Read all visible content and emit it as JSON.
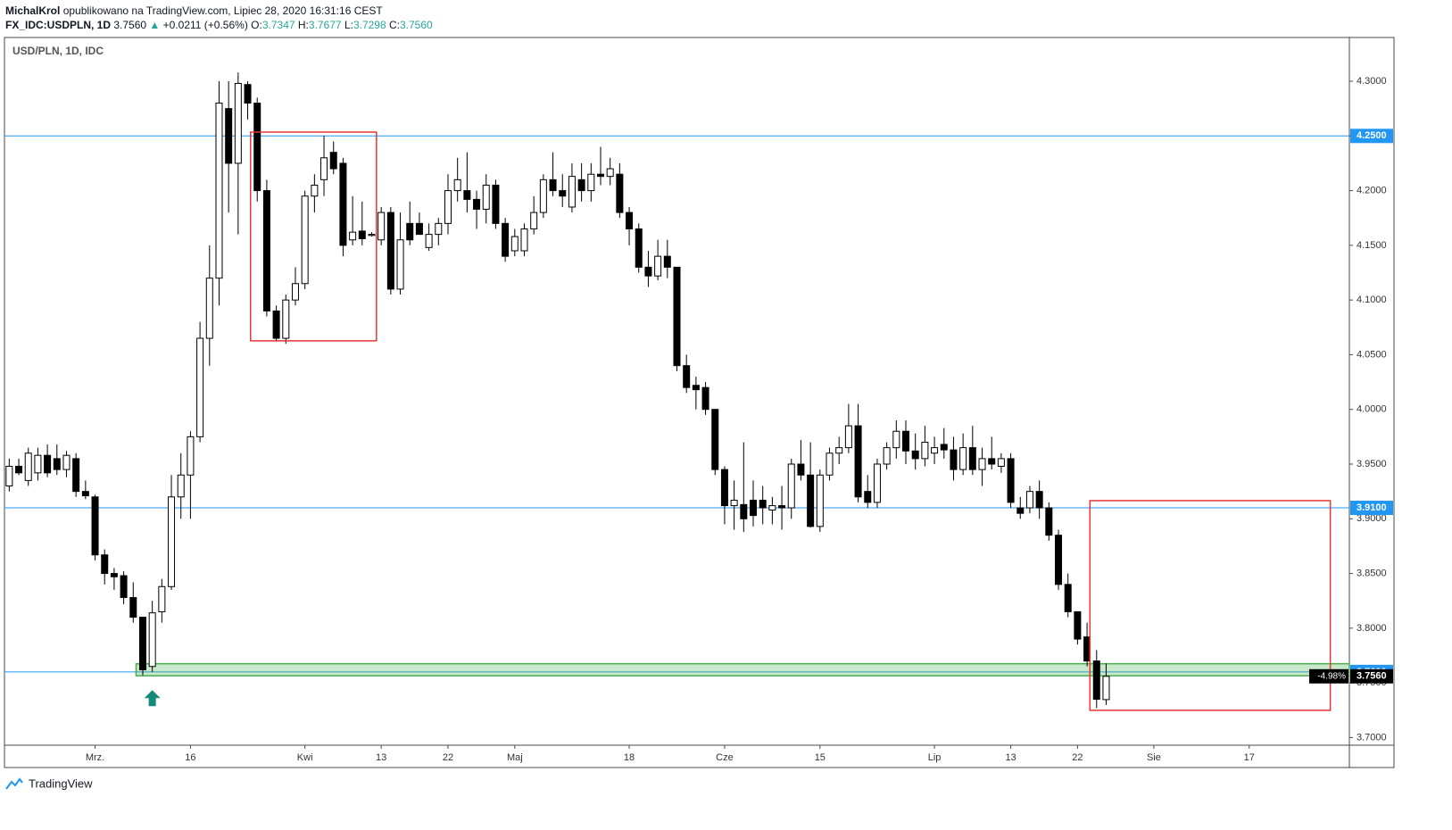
{
  "header": {
    "author": "MichalKrol",
    "published": "opublikowano na TradingView.com, Lipiec 28, 2020 16:31:16 CEST",
    "symbol": "FX_IDC:USDPLN, 1D",
    "last": "3.7560",
    "arrow": "▲",
    "change": "+0.0211 (+0.56%)",
    "o_label": "O:",
    "o": "3.7347",
    "h_label": "H:",
    "h": "3.7677",
    "l_label": "L:",
    "l": "3.7298",
    "c_label": "C:",
    "c": "3.7560"
  },
  "footer": {
    "brand": "TradingView"
  },
  "chart_data": {
    "type": "candlestick",
    "title": "USD/PLN, 1D, IDC",
    "categories": [
      null,
      null,
      null,
      null,
      null,
      null,
      null,
      null,
      null,
      "Mrz.",
      null,
      null,
      null,
      null,
      null,
      null,
      null,
      null,
      null,
      "16",
      null,
      null,
      null,
      null,
      null,
      null,
      null,
      null,
      null,
      null,
      null,
      "Kwi",
      null,
      null,
      null,
      null,
      null,
      null,
      null,
      "13",
      null,
      null,
      null,
      null,
      null,
      null,
      "22",
      null,
      null,
      null,
      null,
      null,
      null,
      "Maj",
      null,
      null,
      null,
      null,
      null,
      null,
      null,
      null,
      null,
      null,
      null,
      "18",
      null,
      null,
      null,
      null,
      null,
      null,
      null,
      null,
      null,
      "Cze",
      null,
      null,
      null,
      null,
      null,
      null,
      null,
      null,
      null,
      "15",
      null,
      null,
      null,
      null,
      null,
      null,
      null,
      null,
      null,
      null,
      null,
      "Lip",
      null,
      null,
      null,
      null,
      null,
      null,
      null,
      "13",
      null,
      null,
      null,
      null,
      null,
      null,
      "22",
      null,
      null,
      null,
      null,
      null,
      null,
      null,
      "Sie",
      null,
      null,
      null,
      null,
      null,
      null,
      null,
      null,
      null,
      "17",
      null,
      null,
      null,
      null,
      null,
      null,
      null,
      null,
      null,
      null
    ],
    "open": [
      3.93,
      3.948,
      3.935,
      3.942,
      3.958,
      3.955,
      3.945,
      3.955,
      3.925,
      3.92,
      3.867,
      3.85,
      3.848,
      3.828,
      3.81,
      3.765,
      3.815,
      3.838,
      3.92,
      3.94,
      3.975,
      4.065,
      4.12,
      4.275,
      4.225,
      4.297,
      4.28,
      4.2,
      4.09,
      4.065,
      4.1,
      4.115,
      4.195,
      4.21,
      4.235,
      4.225,
      4.155,
      4.163,
      4.159,
      4.155,
      4.18,
      4.11,
      4.17,
      4.17,
      4.148,
      4.16,
      4.17,
      4.2,
      4.2,
      4.192,
      4.183,
      4.205,
      4.17,
      4.145,
      4.145,
      4.165,
      4.18,
      4.21,
      4.2,
      4.185,
      4.21,
      4.2,
      4.215,
      4.213,
      4.215,
      4.18,
      4.165,
      4.13,
      4.122,
      4.14,
      4.13,
      4.04,
      4.022,
      4.02,
      4.0,
      3.945,
      3.912,
      3.913,
      3.917,
      3.917,
      3.908,
      3.912,
      3.91,
      3.95,
      3.94,
      3.893,
      3.94,
      3.96,
      3.965,
      3.985,
      3.925,
      3.915,
      3.95,
      3.965,
      3.98,
      3.962,
      3.955,
      3.96,
      3.968,
      3.963,
      3.945,
      3.965,
      3.945,
      3.955,
      3.948,
      3.955,
      3.91,
      3.91,
      3.925,
      3.91,
      3.885,
      3.84,
      3.815,
      3.792,
      3.77,
      3.7347,
      null,
      null,
      null,
      null,
      null,
      null,
      null,
      null,
      null,
      null,
      null,
      null,
      null,
      null,
      null,
      null,
      null,
      null,
      null,
      null,
      null,
      null,
      null,
      null,
      null
    ],
    "high": [
      3.955,
      3.955,
      3.965,
      3.965,
      3.968,
      3.968,
      3.962,
      3.96,
      3.935,
      3.922,
      3.872,
      3.855,
      3.852,
      3.842,
      3.81,
      3.825,
      3.845,
      3.94,
      3.96,
      3.98,
      4.08,
      4.15,
      4.3,
      4.3,
      4.308,
      4.3,
      4.285,
      4.21,
      4.095,
      4.105,
      4.13,
      4.2,
      4.215,
      4.25,
      4.245,
      4.23,
      4.195,
      4.19,
      4.162,
      4.185,
      4.185,
      4.18,
      4.19,
      4.18,
      4.17,
      4.175,
      4.215,
      4.23,
      4.235,
      4.2,
      4.215,
      4.21,
      4.175,
      4.165,
      4.17,
      4.195,
      4.215,
      4.235,
      4.215,
      4.225,
      4.225,
      4.225,
      4.24,
      4.23,
      4.225,
      4.185,
      4.17,
      4.145,
      4.155,
      4.155,
      4.13,
      4.05,
      4.03,
      4.025,
      4.0,
      3.948,
      3.935,
      3.97,
      3.935,
      3.93,
      3.92,
      3.93,
      3.955,
      3.972,
      3.97,
      3.945,
      3.965,
      3.975,
      4.005,
      4.005,
      3.94,
      3.955,
      3.97,
      3.99,
      3.99,
      3.978,
      3.985,
      3.975,
      3.983,
      3.975,
      3.978,
      3.985,
      3.965,
      3.975,
      3.96,
      3.96,
      3.92,
      3.93,
      3.935,
      3.915,
      3.89,
      3.85,
      3.815,
      3.805,
      3.78,
      3.7677,
      null,
      null,
      null,
      null,
      null,
      null,
      null,
      null,
      null,
      null,
      null,
      null,
      null,
      null,
      null,
      null,
      null,
      null,
      null,
      null,
      null,
      null,
      null,
      null,
      null
    ],
    "low": [
      3.925,
      3.94,
      3.93,
      3.935,
      3.938,
      3.94,
      3.938,
      3.92,
      3.918,
      3.862,
      3.84,
      3.835,
      3.822,
      3.805,
      3.757,
      3.76,
      3.805,
      3.835,
      3.9,
      3.9,
      3.97,
      4.04,
      4.095,
      4.18,
      4.16,
      4.265,
      4.19,
      4.085,
      4.062,
      4.06,
      4.095,
      4.11,
      4.18,
      4.195,
      4.215,
      4.14,
      4.15,
      4.15,
      4.158,
      4.15,
      4.105,
      4.105,
      4.15,
      4.16,
      4.145,
      4.15,
      4.16,
      4.19,
      4.18,
      4.165,
      4.17,
      4.165,
      4.135,
      4.14,
      4.14,
      4.16,
      4.175,
      4.195,
      4.185,
      4.18,
      4.19,
      4.19,
      4.205,
      4.205,
      4.175,
      4.15,
      4.125,
      4.112,
      4.118,
      4.12,
      4.035,
      4.015,
      4.0,
      3.995,
      3.94,
      3.895,
      3.89,
      3.888,
      3.893,
      3.895,
      3.895,
      3.89,
      3.9,
      3.935,
      3.892,
      3.888,
      3.935,
      3.95,
      3.96,
      3.915,
      3.91,
      3.91,
      3.945,
      3.955,
      3.95,
      3.945,
      3.948,
      3.95,
      3.955,
      3.935,
      3.94,
      3.94,
      3.93,
      3.945,
      3.942,
      3.91,
      3.9,
      3.905,
      3.9,
      3.88,
      3.835,
      3.81,
      3.785,
      3.765,
      3.727,
      3.7298,
      null,
      null,
      null,
      null,
      null,
      null,
      null,
      null,
      null,
      null,
      null,
      null,
      null,
      null,
      null,
      null,
      null,
      null,
      null,
      null,
      null,
      null,
      null,
      null,
      null
    ],
    "close": [
      3.948,
      3.942,
      3.96,
      3.958,
      3.942,
      3.945,
      3.958,
      3.925,
      3.921,
      3.867,
      3.85,
      3.847,
      3.828,
      3.81,
      3.762,
      3.814,
      3.838,
      3.92,
      3.94,
      3.975,
      4.065,
      4.12,
      4.28,
      4.225,
      4.298,
      4.28,
      4.2,
      4.09,
      4.065,
      4.1,
      4.115,
      4.195,
      4.205,
      4.23,
      4.22,
      4.15,
      4.162,
      4.156,
      4.16,
      4.18,
      4.11,
      4.155,
      4.155,
      4.16,
      4.16,
      4.17,
      4.2,
      4.21,
      4.192,
      4.183,
      4.205,
      4.17,
      4.14,
      4.158,
      4.165,
      4.18,
      4.21,
      4.2,
      4.195,
      4.213,
      4.2,
      4.215,
      4.213,
      4.22,
      4.18,
      4.165,
      4.13,
      4.122,
      4.14,
      4.13,
      4.04,
      4.02,
      4.018,
      4.0,
      3.945,
      3.912,
      3.917,
      3.9,
      3.903,
      3.91,
      3.912,
      3.91,
      3.95,
      3.94,
      3.893,
      3.94,
      3.96,
      3.965,
      3.985,
      3.92,
      3.915,
      3.95,
      3.965,
      3.98,
      3.962,
      3.955,
      3.97,
      3.965,
      3.963,
      3.945,
      3.965,
      3.945,
      3.955,
      3.95,
      3.955,
      3.915,
      3.905,
      3.925,
      3.91,
      3.885,
      3.84,
      3.815,
      3.79,
      3.77,
      3.735,
      3.756,
      null,
      null,
      null,
      null,
      null,
      null,
      null,
      null,
      null,
      null,
      null,
      null,
      null,
      null,
      null,
      null,
      null,
      null,
      null,
      null,
      null,
      null,
      null,
      null,
      null
    ],
    "up_color": "#ffffff",
    "down_color": "#000000",
    "wick_color": "#000000",
    "ylim": [
      3.693,
      4.34
    ],
    "yticks": [
      {
        "value": 3.7,
        "label": "3.7000"
      },
      {
        "value": 3.75,
        "label": "3.7500"
      },
      {
        "value": 3.8,
        "label": "3.8000"
      },
      {
        "value": 3.85,
        "label": "3.8500"
      },
      {
        "value": 3.9,
        "label": "3.9000"
      },
      {
        "value": 3.95,
        "label": "3.9500"
      },
      {
        "value": 4.0,
        "label": "4.0000"
      },
      {
        "value": 4.05,
        "label": "4.0500"
      },
      {
        "value": 4.1,
        "label": "4.1000"
      },
      {
        "value": 4.15,
        "label": "4.1500"
      },
      {
        "value": 4.2,
        "label": "4.2000"
      },
      {
        "value": 4.25,
        "label": "4.2500"
      },
      {
        "value": 4.3,
        "label": "4.3000"
      }
    ],
    "grid": false,
    "hlines": [
      {
        "value": 4.25,
        "label": "4.2500",
        "color": "#2196f3"
      },
      {
        "value": 3.91,
        "label": "3.9100",
        "color": "#2196f3"
      },
      {
        "value": 3.76,
        "label": "3.7600",
        "color": "#2196f3"
      }
    ],
    "last_price": {
      "value": 3.756,
      "label": "3.7560",
      "change": "-4.98%"
    },
    "zone": {
      "x0": 13.3,
      "y0": 3.7565,
      "y1": 3.7675,
      "color": "#4caf50"
    },
    "boxes": [
      {
        "x0": 25.3,
        "x1": 38.5,
        "y0": 4.0627,
        "y1": 4.2535,
        "color": "#e53935"
      },
      {
        "x0": 113.3,
        "x1": 138.5,
        "y0": 3.7249,
        "y1": 3.9166,
        "color": "#e53935"
      }
    ],
    "arrow": {
      "x": 15,
      "y": 3.745,
      "color": "#138a7a"
    }
  }
}
